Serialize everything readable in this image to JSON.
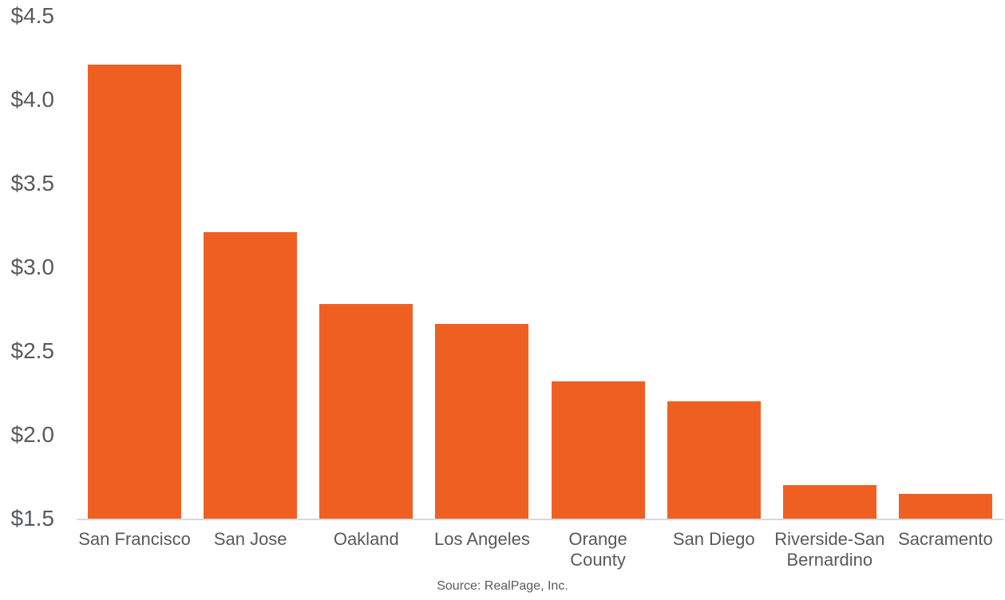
{
  "chart_data": {
    "type": "bar",
    "categories": [
      "San Francisco",
      "San Jose",
      "Oakland",
      "Los Angeles",
      "Orange County",
      "San Diego",
      "Riverside-San Bernardino",
      "Sacramento"
    ],
    "values": [
      4.21,
      3.21,
      2.78,
      2.66,
      2.32,
      2.2,
      1.7,
      1.65
    ],
    "title": "",
    "xlabel": "",
    "ylabel": "",
    "ylim": [
      1.5,
      4.5
    ],
    "ytick_step": 0.5,
    "ytick_labels": [
      "$1.5",
      "$2.0",
      "$2.5",
      "$3.0",
      "$3.5",
      "$4.0",
      "$4.5"
    ],
    "grid": false,
    "legend": false,
    "bar_color": "#F05F22",
    "axis_line_color": "#D9D9D9",
    "text_color": "#58595B",
    "source": "Source: RealPage, Inc."
  }
}
